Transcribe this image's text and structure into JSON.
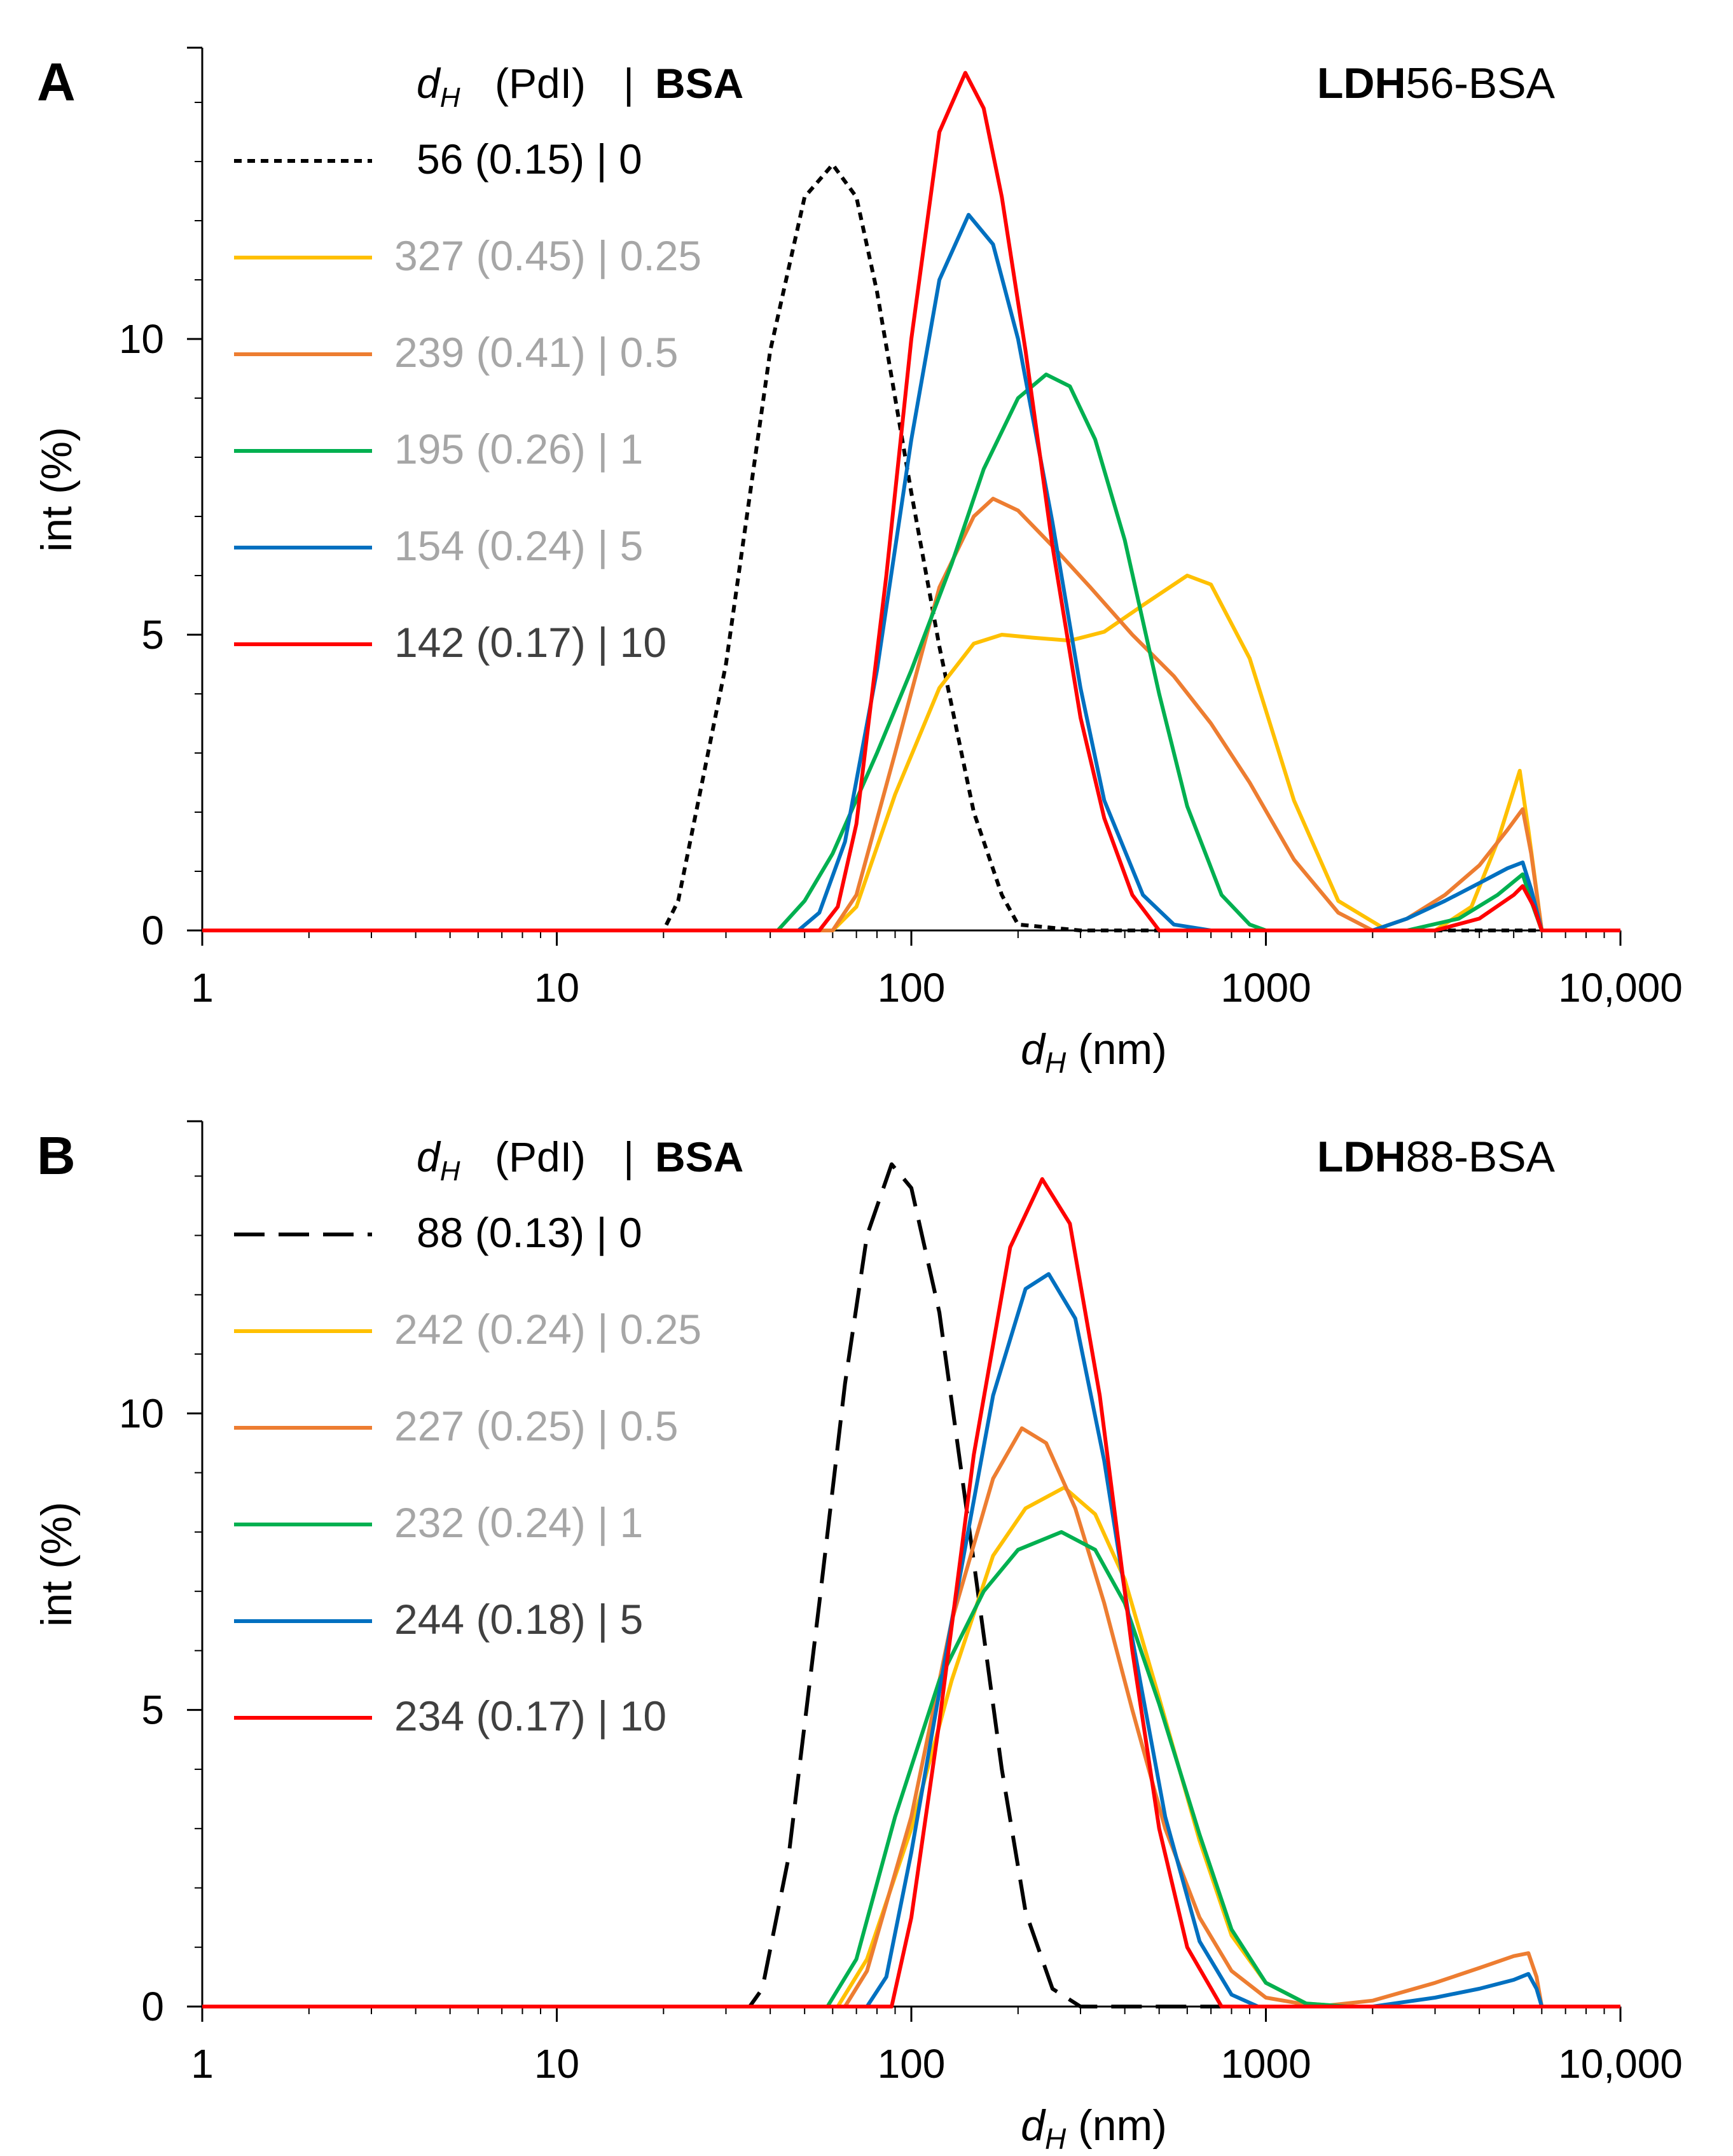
{
  "chart_data": [
    {
      "type": "line",
      "panel_letter": "A",
      "title_bold": "LDH",
      "title_rest": "56-BSA",
      "xlabel_symbol": "d",
      "xlabel_sub": "H",
      "xlabel_unit": "(nm)",
      "ylabel": "int (%)",
      "xscale": "log",
      "xlim": [
        1,
        10000
      ],
      "ylim": [
        0,
        15
      ],
      "x_ticks": [
        1,
        10,
        100,
        1000,
        10000
      ],
      "x_tick_labels": [
        "1",
        "10",
        "100",
        "1000",
        "10,000"
      ],
      "y_ticks": [
        0,
        5,
        10
      ],
      "y_tick_labels": [
        "0",
        "5",
        "10"
      ],
      "legend_header": {
        "symbol": "d",
        "sub": "H",
        "pdi": "(PdI)",
        "sep": "|",
        "bsa": "BSA"
      },
      "series": [
        {
          "name": "56 (0.15) | 0",
          "color": "#000000",
          "dash": "dotted",
          "text_color": "#000000",
          "x": [
            1,
            20,
            22,
            30,
            40,
            50,
            60,
            70,
            80,
            100,
            120,
            150,
            180,
            200,
            300,
            10000
          ],
          "y": [
            0,
            0,
            0.5,
            4.5,
            9.8,
            12.4,
            12.95,
            12.4,
            10.8,
            7.4,
            4.8,
            2.0,
            0.6,
            0.1,
            0,
            0
          ]
        },
        {
          "name": "327 (0.45) | 0.25",
          "color": "#FFC000",
          "dash": "solid",
          "text_color": "#A6A6A6",
          "x": [
            1,
            60,
            70,
            90,
            120,
            150,
            180,
            220,
            280,
            350,
            450,
            600,
            700,
            900,
            1200,
            1600,
            2200,
            3000,
            3800,
            4500,
            5200,
            5500,
            6000,
            10000
          ],
          "y": [
            0,
            0,
            0.4,
            2.3,
            4.1,
            4.85,
            5.0,
            4.95,
            4.9,
            5.05,
            5.5,
            6.0,
            5.85,
            4.6,
            2.2,
            0.5,
            0,
            0,
            0.4,
            1.5,
            2.7,
            1.7,
            0,
            0
          ]
        },
        {
          "name": "239 (0.41) | 0.5",
          "color": "#ED7D31",
          "dash": "solid",
          "text_color": "#A6A6A6",
          "x": [
            1,
            60,
            70,
            90,
            120,
            150,
            170,
            200,
            250,
            320,
            420,
            550,
            700,
            900,
            1200,
            1600,
            2000,
            2500,
            3200,
            4000,
            4800,
            5300,
            5600,
            6000,
            10000
          ],
          "y": [
            0,
            0,
            0.6,
            3.0,
            5.8,
            7.0,
            7.3,
            7.1,
            6.5,
            5.8,
            5.0,
            4.3,
            3.5,
            2.5,
            1.2,
            0.3,
            0,
            0.2,
            0.6,
            1.1,
            1.7,
            2.05,
            1.3,
            0,
            0
          ]
        },
        {
          "name": "195 (0.26) | 1",
          "color": "#00B050",
          "dash": "solid",
          "text_color": "#A6A6A6",
          "x": [
            1,
            42,
            50,
            60,
            80,
            100,
            130,
            160,
            200,
            240,
            280,
            330,
            400,
            500,
            600,
            750,
            900,
            1000,
            2500,
            3500,
            4500,
            5300,
            5600,
            6000,
            10000
          ],
          "y": [
            0,
            0,
            0.5,
            1.3,
            3.0,
            4.4,
            6.2,
            7.8,
            9.0,
            9.4,
            9.2,
            8.3,
            6.6,
            4.0,
            2.1,
            0.6,
            0.1,
            0,
            0,
            0.2,
            0.6,
            0.95,
            0.5,
            0,
            0
          ]
        },
        {
          "name": "154 (0.24) | 5",
          "color": "#0070C0",
          "dash": "solid",
          "text_color": "#A6A6A6",
          "x": [
            1,
            48,
            55,
            65,
            80,
            100,
            120,
            145,
            170,
            200,
            250,
            300,
            350,
            450,
            550,
            700,
            2000,
            2500,
            3200,
            4000,
            4800,
            5300,
            5600,
            6000,
            10000
          ],
          "y": [
            0,
            0,
            0.3,
            1.5,
            4.4,
            8.3,
            11.0,
            12.1,
            11.6,
            10.0,
            6.9,
            4.1,
            2.2,
            0.6,
            0.1,
            0,
            0,
            0.2,
            0.5,
            0.8,
            1.05,
            1.15,
            0.7,
            0,
            0
          ]
        },
        {
          "name": "142 (0.17) | 10",
          "color": "#FF0000",
          "dash": "solid",
          "text_color": "#404040",
          "x": [
            1,
            55,
            62,
            70,
            85,
            100,
            120,
            142,
            160,
            180,
            210,
            250,
            300,
            350,
            420,
            500,
            3000,
            4000,
            5000,
            5300,
            5700,
            6000,
            10000
          ],
          "y": [
            0,
            0,
            0.4,
            1.8,
            6.0,
            10.0,
            13.5,
            14.5,
            13.9,
            12.4,
            9.8,
            6.5,
            3.6,
            1.9,
            0.6,
            0,
            0,
            0.2,
            0.6,
            0.75,
            0.4,
            0,
            0
          ]
        }
      ]
    },
    {
      "type": "line",
      "panel_letter": "B",
      "title_bold": "LDH",
      "title_rest": "88-BSA",
      "xlabel_symbol": "d",
      "xlabel_sub": "H",
      "xlabel_unit": "(nm)",
      "ylabel": "int (%)",
      "xscale": "log",
      "xlim": [
        1,
        10000
      ],
      "ylim": [
        0,
        15
      ],
      "x_ticks": [
        1,
        10,
        100,
        1000,
        10000
      ],
      "x_tick_labels": [
        "1",
        "10",
        "100",
        "1000",
        "10,000"
      ],
      "y_ticks": [
        0,
        5,
        10
      ],
      "y_tick_labels": [
        "0",
        "5",
        "10"
      ],
      "legend_header": {
        "symbol": "d",
        "sub": "H",
        "pdi": "(PdI)",
        "sep": "|",
        "bsa": "BSA"
      },
      "series": [
        {
          "name": "88 (0.13) | 0",
          "color": "#000000",
          "dash": "dashed",
          "text_color": "#000000",
          "x": [
            1,
            35,
            38,
            45,
            55,
            65,
            75,
            88,
            100,
            120,
            150,
            180,
            210,
            250,
            300,
            10000
          ],
          "y": [
            0,
            0,
            0.3,
            2.5,
            6.8,
            10.5,
            13.0,
            14.2,
            13.8,
            11.7,
            7.5,
            4.0,
            1.6,
            0.3,
            0,
            0
          ]
        },
        {
          "name": "242 (0.24) | 0.25",
          "color": "#FFC000",
          "dash": "solid",
          "text_color": "#A6A6A6",
          "x": [
            1,
            62,
            75,
            100,
            130,
            170,
            210,
            270,
            330,
            400,
            500,
            650,
            800,
            1000,
            1300,
            1700,
            10000
          ],
          "y": [
            0,
            0,
            0.8,
            3.0,
            5.5,
            7.6,
            8.4,
            8.75,
            8.3,
            7.2,
            5.2,
            2.8,
            1.2,
            0.4,
            0.05,
            0,
            0
          ]
        },
        {
          "name": "227 (0.25) | 0.5",
          "color": "#ED7D31",
          "dash": "solid",
          "text_color": "#A6A6A6",
          "x": [
            1,
            65,
            75,
            100,
            130,
            170,
            205,
            240,
            290,
            350,
            420,
            520,
            650,
            800,
            1000,
            1400,
            2000,
            3000,
            4000,
            5000,
            5500,
            5800,
            6000,
            10000
          ],
          "y": [
            0,
            0,
            0.6,
            3.2,
            6.5,
            8.9,
            9.75,
            9.5,
            8.4,
            6.8,
            5.0,
            3.0,
            1.5,
            0.6,
            0.15,
            0,
            0.1,
            0.4,
            0.65,
            0.85,
            0.9,
            0.5,
            0,
            0
          ]
        },
        {
          "name": "232 (0.24) | 1",
          "color": "#00B050",
          "dash": "solid",
          "text_color": "#A6A6A6",
          "x": [
            1,
            58,
            70,
            90,
            120,
            160,
            200,
            265,
            330,
            400,
            500,
            650,
            800,
            1000,
            1300,
            1700,
            10000
          ],
          "y": [
            0,
            0,
            0.8,
            3.2,
            5.5,
            7.0,
            7.7,
            8.0,
            7.7,
            6.8,
            5.1,
            2.9,
            1.3,
            0.4,
            0.05,
            0,
            0
          ]
        },
        {
          "name": "244 (0.18) | 5",
          "color": "#0070C0",
          "dash": "solid",
          "text_color": "#404040",
          "x": [
            1,
            75,
            85,
            100,
            130,
            170,
            210,
            244,
            290,
            350,
            420,
            520,
            650,
            800,
            950,
            2000,
            3000,
            4000,
            5000,
            5500,
            5800,
            6000,
            10000
          ],
          "y": [
            0,
            0,
            0.5,
            2.6,
            6.5,
            10.3,
            12.1,
            12.35,
            11.6,
            9.2,
            6.2,
            3.2,
            1.1,
            0.2,
            0,
            0,
            0.15,
            0.3,
            0.45,
            0.55,
            0.3,
            0,
            0
          ]
        },
        {
          "name": "234 (0.17) | 10",
          "color": "#FF0000",
          "dash": "solid",
          "text_color": "#404040",
          "x": [
            1,
            88,
            100,
            120,
            150,
            190,
            234,
            280,
            340,
            420,
            500,
            600,
            750,
            10000
          ],
          "y": [
            0,
            0,
            1.5,
            4.8,
            9.3,
            12.8,
            13.95,
            13.2,
            10.3,
            6.0,
            3.0,
            1.0,
            0,
            0
          ]
        }
      ]
    }
  ]
}
